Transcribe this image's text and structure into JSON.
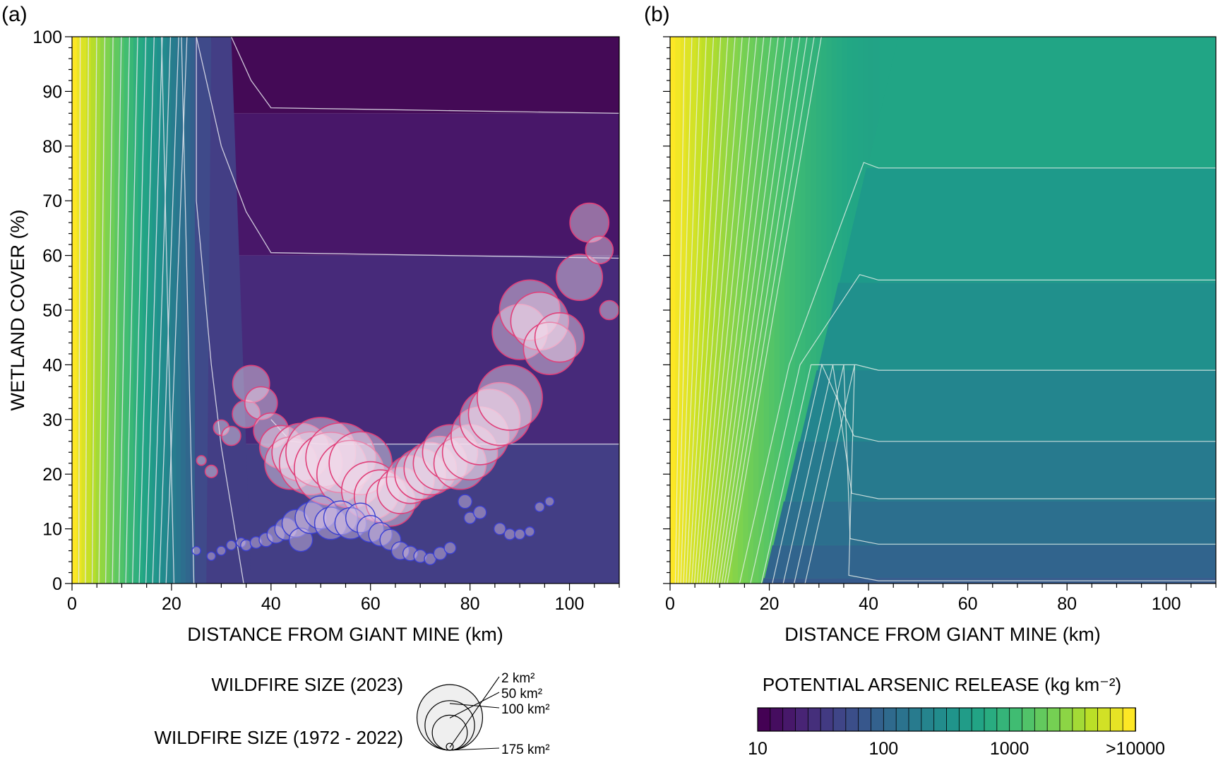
{
  "panels": {
    "a": {
      "label": "(a)"
    },
    "b": {
      "label": "(b)"
    }
  },
  "chart_data": [
    {
      "panel": "(a)",
      "type": "heatmap",
      "xlabel": "DISTANCE FROM GIANT MINE (km)",
      "ylabel": "WETLAND COVER (%)",
      "xlim": [
        0,
        110
      ],
      "ylim": [
        0,
        100
      ],
      "xticks": [
        0,
        20,
        40,
        60,
        80,
        100
      ],
      "yticks": [
        0,
        10,
        20,
        30,
        40,
        50,
        60,
        70,
        80,
        90,
        100
      ],
      "plateau_levels": [
        {
          "y_from": 86,
          "y_to": 100,
          "color": "#440a56"
        },
        {
          "y_from": 60,
          "y_to": 86,
          "color": "#481769"
        },
        {
          "y_from": 25.5,
          "y_to": 60,
          "color": "#472a7a"
        },
        {
          "y_from": 0,
          "y_to": 25.5,
          "color": "#433e85"
        }
      ],
      "overlay": {
        "type": "scatter",
        "series": [
          {
            "name": "WILDFIRE SIZE (2023)",
            "color": "#3a3fd0",
            "points": [
              {
                "x": 25,
                "y": 6,
                "size": 2
              },
              {
                "x": 28,
                "y": 5,
                "size": 2
              },
              {
                "x": 30,
                "y": 6,
                "size": 2.5
              },
              {
                "x": 32,
                "y": 7,
                "size": 3
              },
              {
                "x": 34,
                "y": 7.5,
                "size": 3
              },
              {
                "x": 35,
                "y": 7,
                "size": 5
              },
              {
                "x": 37,
                "y": 7.5,
                "size": 6
              },
              {
                "x": 39,
                "y": 8,
                "size": 10
              },
              {
                "x": 41,
                "y": 9,
                "size": 20
              },
              {
                "x": 43,
                "y": 10,
                "size": 35
              },
              {
                "x": 45,
                "y": 11,
                "size": 60
              },
              {
                "x": 46,
                "y": 8,
                "size": 40
              },
              {
                "x": 48,
                "y": 12,
                "size": 80
              },
              {
                "x": 50,
                "y": 13,
                "size": 90
              },
              {
                "x": 52,
                "y": 11,
                "size": 85
              },
              {
                "x": 54,
                "y": 12,
                "size": 95
              },
              {
                "x": 56,
                "y": 11,
                "size": 80
              },
              {
                "x": 58,
                "y": 12,
                "size": 70
              },
              {
                "x": 60,
                "y": 10,
                "size": 55
              },
              {
                "x": 62,
                "y": 9,
                "size": 40
              },
              {
                "x": 64,
                "y": 8,
                "size": 30
              },
              {
                "x": 66,
                "y": 6,
                "size": 20
              },
              {
                "x": 68,
                "y": 5.5,
                "size": 12
              },
              {
                "x": 70,
                "y": 5,
                "size": 8
              },
              {
                "x": 72,
                "y": 4.5,
                "size": 6
              },
              {
                "x": 74,
                "y": 5.5,
                "size": 8
              },
              {
                "x": 76,
                "y": 6.5,
                "size": 6
              },
              {
                "x": 79,
                "y": 15,
                "size": 10
              },
              {
                "x": 80,
                "y": 12,
                "size": 6
              },
              {
                "x": 82,
                "y": 13,
                "size": 8
              },
              {
                "x": 86,
                "y": 10,
                "size": 6
              },
              {
                "x": 88,
                "y": 9,
                "size": 5
              },
              {
                "x": 90,
                "y": 9,
                "size": 4
              },
              {
                "x": 92,
                "y": 9.5,
                "size": 3
              },
              {
                "x": 94,
                "y": 14,
                "size": 3
              },
              {
                "x": 96,
                "y": 15,
                "size": 2.5
              }
            ]
          },
          {
            "name": "WILDFIRE SIZE (1972 - 2022)",
            "color": "#e0407a",
            "points": [
              {
                "x": 26,
                "y": 22.5,
                "size": 3
              },
              {
                "x": 28,
                "y": 20.5,
                "size": 5
              },
              {
                "x": 30,
                "y": 28.5,
                "size": 8
              },
              {
                "x": 32,
                "y": 27,
                "size": 12
              },
              {
                "x": 35,
                "y": 31,
                "size": 25
              },
              {
                "x": 36,
                "y": 36.5,
                "size": 45
              },
              {
                "x": 38,
                "y": 33,
                "size": 35
              },
              {
                "x": 40,
                "y": 28,
                "size": 40
              },
              {
                "x": 42,
                "y": 25,
                "size": 60
              },
              {
                "x": 44,
                "y": 22,
                "size": 90
              },
              {
                "x": 46,
                "y": 24,
                "size": 110
              },
              {
                "x": 48,
                "y": 22,
                "size": 130
              },
              {
                "x": 50,
                "y": 24,
                "size": 160
              },
              {
                "x": 52,
                "y": 21,
                "size": 175
              },
              {
                "x": 54,
                "y": 23,
                "size": 160
              },
              {
                "x": 56,
                "y": 20,
                "size": 150
              },
              {
                "x": 58,
                "y": 22,
                "size": 130
              },
              {
                "x": 60,
                "y": 17,
                "size": 110
              },
              {
                "x": 62,
                "y": 16,
                "size": 90
              },
              {
                "x": 64,
                "y": 15,
                "size": 80
              },
              {
                "x": 66,
                "y": 17,
                "size": 70
              },
              {
                "x": 68,
                "y": 19,
                "size": 75
              },
              {
                "x": 70,
                "y": 20,
                "size": 85
              },
              {
                "x": 72,
                "y": 21,
                "size": 90
              },
              {
                "x": 74,
                "y": 22,
                "size": 95
              },
              {
                "x": 76,
                "y": 24,
                "size": 100
              },
              {
                "x": 78,
                "y": 22,
                "size": 90
              },
              {
                "x": 80,
                "y": 24,
                "size": 100
              },
              {
                "x": 82,
                "y": 27,
                "size": 110
              },
              {
                "x": 84,
                "y": 30,
                "size": 120
              },
              {
                "x": 86,
                "y": 31,
                "size": 130
              },
              {
                "x": 88,
                "y": 34,
                "size": 140
              },
              {
                "x": 90,
                "y": 46,
                "size": 100
              },
              {
                "x": 92,
                "y": 50,
                "size": 120
              },
              {
                "x": 94,
                "y": 48,
                "size": 110
              },
              {
                "x": 96,
                "y": 43,
                "size": 90
              },
              {
                "x": 98,
                "y": 45,
                "size": 80
              },
              {
                "x": 102,
                "y": 56,
                "size": 70
              },
              {
                "x": 104,
                "y": 66,
                "size": 50
              },
              {
                "x": 106,
                "y": 61,
                "size": 25
              },
              {
                "x": 108,
                "y": 50,
                "size": 12
              }
            ]
          }
        ]
      }
    },
    {
      "panel": "(b)",
      "type": "heatmap",
      "xlabel": "DISTANCE FROM GIANT MINE (km)",
      "ylabel": "",
      "xlim": [
        0,
        110
      ],
      "ylim": [
        0,
        100
      ],
      "xticks": [
        0,
        20,
        40,
        60,
        80,
        100
      ],
      "yticks": [],
      "plateau_levels": [
        {
          "y_from": 76,
          "y_to": 100,
          "color": "#21a585"
        },
        {
          "y_from": 55,
          "y_to": 76,
          "color": "#1e9a8a"
        },
        {
          "y_from": 39,
          "y_to": 55,
          "color": "#20908c"
        },
        {
          "y_from": 26,
          "y_to": 39,
          "color": "#23858e"
        },
        {
          "y_from": 15,
          "y_to": 26,
          "color": "#277a8e"
        },
        {
          "y_from": 7,
          "y_to": 15,
          "color": "#2c6f8e"
        },
        {
          "y_from": 1,
          "y_to": 7,
          "color": "#31648d"
        },
        {
          "y_from": 0,
          "y_to": 1,
          "color": "#365a8c"
        }
      ]
    }
  ],
  "size_legend": {
    "label_2023": "WILDFIRE SIZE (2023)",
    "label_hist": "WILDFIRE SIZE (1972 - 2022)",
    "color_2023": "#3a3fd0",
    "color_hist": "#e0407a",
    "entries": [
      {
        "size": 2,
        "label": "2 km²"
      },
      {
        "size": 50,
        "label": "50 km²"
      },
      {
        "size": 100,
        "label": "100 km²"
      },
      {
        "size": 175,
        "label": "175 km²"
      }
    ]
  },
  "colorbar": {
    "title": "POTENTIAL ARSENIC RELEASE (kg km⁻²)",
    "tick_labels": [
      "10",
      "100",
      "1000",
      ">10000"
    ],
    "log_min": 1,
    "log_max": 4,
    "n_bins": 30
  }
}
